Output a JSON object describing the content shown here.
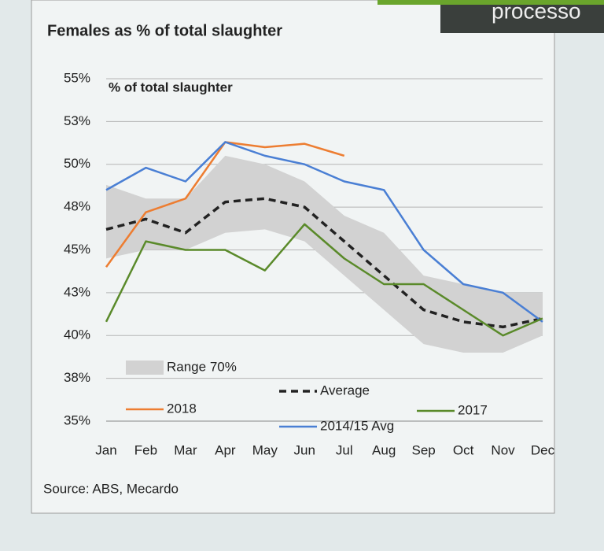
{
  "header_fragment": "processo",
  "chart_data": {
    "type": "line",
    "title": "Females as % of total slaughter",
    "y_label": "% of total slaughter",
    "source": "Source: ABS, Mecardo",
    "categories": [
      "Jan",
      "Feb",
      "Mar",
      "Apr",
      "May",
      "Jun",
      "Jul",
      "Aug",
      "Sep",
      "Oct",
      "Nov",
      "Dec"
    ],
    "ylim": [
      35,
      55
    ],
    "yticks": [
      {
        "value": 35,
        "label": "35%"
      },
      {
        "value": 37.5,
        "label": "38%"
      },
      {
        "value": 40,
        "label": "40%"
      },
      {
        "value": 42.5,
        "label": "43%"
      },
      {
        "value": 45,
        "label": "45%"
      },
      {
        "value": 47.5,
        "label": "48%"
      },
      {
        "value": 50,
        "label": "50%"
      },
      {
        "value": 52.5,
        "label": "53%"
      },
      {
        "value": 55,
        "label": "55%"
      }
    ],
    "grid": true,
    "series": [
      {
        "name": "Range 70%",
        "color": "#d2d2d2",
        "kind": "band",
        "low": [
          44.5,
          45,
          45,
          46,
          46.2,
          45.5,
          43.5,
          41.5,
          39.5,
          39,
          39,
          40
        ],
        "high": [
          48.8,
          48,
          48,
          50.5,
          50,
          49,
          47,
          46,
          43.5,
          43,
          42.5,
          42.5
        ]
      },
      {
        "name": "Average",
        "color": "#222222",
        "dashed": true,
        "values": [
          46.2,
          46.8,
          46,
          47.8,
          48,
          47.5,
          45.5,
          43.5,
          41.5,
          40.8,
          40.5,
          41
        ]
      },
      {
        "name": "2018",
        "color": "#ed7d31",
        "values": [
          44,
          47.2,
          48,
          51.3,
          51,
          51.2,
          50.5,
          null,
          null,
          null,
          null,
          null
        ]
      },
      {
        "name": "2014/15 Avg",
        "color": "#4a7fd4",
        "values": [
          48.5,
          49.8,
          49,
          51.3,
          50.5,
          50,
          49,
          48.5,
          45,
          43,
          42.5,
          40.8
        ]
      },
      {
        "name": "2017",
        "color": "#5a8a2a",
        "values": [
          40.8,
          45.5,
          45,
          45,
          43.8,
          46.5,
          44.5,
          43,
          43,
          41.5,
          40,
          41
        ]
      }
    ]
  }
}
